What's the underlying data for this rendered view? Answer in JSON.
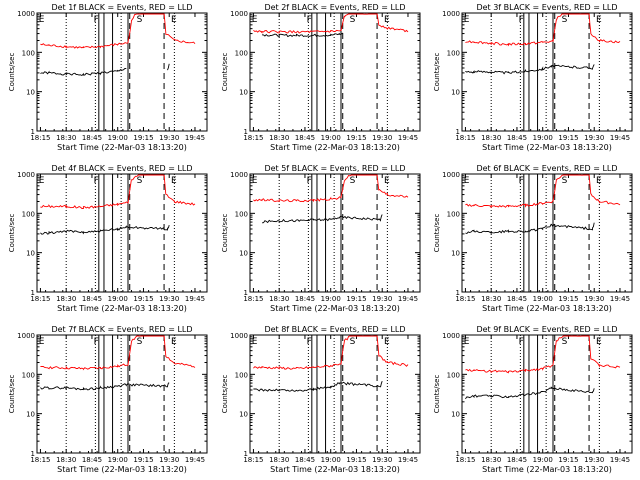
{
  "chart_data": [
    {
      "type": "line",
      "title": "Det 1f BLACK = Events, RED = LLD",
      "ylabel": "Counts/sec",
      "xlabel": "Start Time (22-Mar-03 18:13:20)",
      "x_ticks": [
        "18:15",
        "18:30",
        "18:45",
        "19:00",
        "19:15",
        "19:30",
        "19:45"
      ],
      "y_ticks": [
        "1",
        "10",
        "100",
        "1000"
      ],
      "ylim": [
        1,
        1000
      ],
      "yscale": "log",
      "markers": [
        "E",
        "F",
        "S",
        "E"
      ],
      "series": [
        {
          "name": "Events",
          "color": "#000000",
          "x": [
            "18:15",
            "18:20",
            "18:30",
            "18:40",
            "18:50",
            "19:00",
            "19:05",
            "19:28",
            "19:29",
            "19:30"
          ],
          "values": [
            30,
            30,
            28,
            27,
            30,
            33,
            40,
            null,
            35,
            50
          ]
        },
        {
          "name": "LLD",
          "color": "#ff0000",
          "x": [
            "18:15",
            "18:20",
            "18:30",
            "18:40",
            "18:50",
            "19:00",
            "19:06",
            "19:08",
            "19:10",
            "19:12",
            "19:27",
            "19:28",
            "19:33",
            "19:45"
          ],
          "values": [
            160,
            150,
            140,
            130,
            140,
            160,
            175,
            600,
            900,
            1000,
            1000,
            300,
            200,
            170
          ]
        }
      ]
    },
    {
      "type": "line",
      "title": "Det 2f BLACK = Events, RED = LLD",
      "ylabel": "Counts/sec",
      "xlabel": "Start Time (22-Mar-03 18:13:20)",
      "x_ticks": [
        "18:15",
        "18:30",
        "18:45",
        "19:00",
        "19:15",
        "19:30",
        "19:45"
      ],
      "y_ticks": [
        "1",
        "10",
        "100",
        "1000"
      ],
      "ylim": [
        1,
        1000
      ],
      "yscale": "log",
      "markers": [
        "E",
        "F",
        "S",
        "E"
      ],
      "series": [
        {
          "name": "Events",
          "color": "#000000",
          "x": [
            "18:20",
            "18:30",
            "18:40",
            "18:50",
            "19:00",
            "19:05",
            "19:07"
          ],
          "values": [
            280,
            270,
            270,
            270,
            275,
            290,
            300
          ]
        },
        {
          "name": "LLD",
          "color": "#ff0000",
          "x": [
            "18:15",
            "18:20",
            "18:30",
            "18:40",
            "18:50",
            "19:00",
            "19:06",
            "19:08",
            "19:12",
            "19:27",
            "19:28",
            "19:33",
            "19:45"
          ],
          "values": [
            350,
            340,
            330,
            330,
            330,
            340,
            350,
            800,
            1000,
            1000,
            500,
            420,
            350
          ]
        }
      ]
    },
    {
      "type": "line",
      "title": "Det 3f BLACK = Events, RED = LLD",
      "ylabel": "Counts/sec",
      "xlabel": "Start Time (22-Mar-03 18:13:20)",
      "x_ticks": [
        "18:15",
        "18:30",
        "18:45",
        "19:00",
        "19:15",
        "19:30",
        "19:45"
      ],
      "y_ticks": [
        "1",
        "10",
        "100",
        "1000"
      ],
      "ylim": [
        1,
        1000
      ],
      "yscale": "log",
      "markers": [
        "E",
        "F",
        "S",
        "E"
      ],
      "series": [
        {
          "name": "Events",
          "color": "#000000",
          "x": [
            "18:15",
            "18:20",
            "18:30",
            "18:40",
            "18:50",
            "19:00",
            "19:05",
            "19:29",
            "19:30"
          ],
          "values": [
            32,
            32,
            32,
            30,
            33,
            38,
            45,
            40,
            50
          ]
        },
        {
          "name": "LLD",
          "color": "#ff0000",
          "x": [
            "18:15",
            "18:20",
            "18:30",
            "18:40",
            "18:50",
            "19:00",
            "19:06",
            "19:08",
            "19:12",
            "19:27",
            "19:28",
            "19:33",
            "19:45"
          ],
          "values": [
            190,
            185,
            170,
            160,
            165,
            180,
            190,
            700,
            1000,
            1000,
            300,
            200,
            180
          ]
        }
      ]
    },
    {
      "type": "line",
      "title": "Det 4f BLACK = Events, RED = LLD",
      "ylabel": "Counts/sec",
      "xlabel": "Start Time (22-Mar-03 18:13:20)",
      "x_ticks": [
        "18:15",
        "18:30",
        "18:45",
        "19:00",
        "19:15",
        "19:30",
        "19:45"
      ],
      "y_ticks": [
        "1",
        "10",
        "100",
        "1000"
      ],
      "ylim": [
        1,
        1000
      ],
      "yscale": "log",
      "markers": [
        "E",
        "F",
        "S",
        "E"
      ],
      "series": [
        {
          "name": "Events",
          "color": "#000000",
          "x": [
            "18:15",
            "18:20",
            "18:30",
            "18:40",
            "18:50",
            "19:00",
            "19:05",
            "19:29",
            "19:30"
          ],
          "values": [
            30,
            32,
            35,
            33,
            35,
            40,
            45,
            40,
            50
          ]
        },
        {
          "name": "LLD",
          "color": "#ff0000",
          "x": [
            "18:15",
            "18:20",
            "18:30",
            "18:40",
            "18:50",
            "19:00",
            "19:06",
            "19:08",
            "19:12",
            "19:27",
            "19:28",
            "19:33",
            "19:45"
          ],
          "values": [
            150,
            150,
            150,
            140,
            150,
            170,
            190,
            700,
            1000,
            1000,
            300,
            200,
            170
          ]
        }
      ]
    },
    {
      "type": "line",
      "title": "Det 5f BLACK = Events, RED = LLD",
      "ylabel": "Counts/sec",
      "xlabel": "Start Time (22-Mar-03 18:13:20)",
      "x_ticks": [
        "18:15",
        "18:30",
        "18:45",
        "19:00",
        "19:15",
        "19:30",
        "19:45"
      ],
      "y_ticks": [
        "1",
        "10",
        "100",
        "1000"
      ],
      "ylim": [
        1,
        1000
      ],
      "yscale": "log",
      "markers": [
        "E",
        "F",
        "S",
        "E"
      ],
      "series": [
        {
          "name": "Events",
          "color": "#000000",
          "x": [
            "18:20",
            "18:30",
            "18:40",
            "18:50",
            "19:00",
            "19:05",
            "19:29",
            "19:30"
          ],
          "values": [
            60,
            65,
            65,
            68,
            70,
            80,
            70,
            90
          ]
        },
        {
          "name": "LLD",
          "color": "#ff0000",
          "x": [
            "18:15",
            "18:20",
            "18:30",
            "18:40",
            "18:50",
            "19:00",
            "19:06",
            "19:08",
            "19:12",
            "19:27",
            "19:28",
            "19:33",
            "19:45"
          ],
          "values": [
            220,
            220,
            210,
            210,
            215,
            230,
            250,
            700,
            1000,
            1000,
            400,
            300,
            260
          ]
        }
      ]
    },
    {
      "type": "line",
      "title": "Det 6f BLACK = Events, RED = LLD",
      "ylabel": "Counts/sec",
      "xlabel": "Start Time (22-Mar-03 18:13:20)",
      "x_ticks": [
        "18:15",
        "18:30",
        "18:45",
        "19:00",
        "19:15",
        "19:30",
        "19:45"
      ],
      "y_ticks": [
        "1",
        "10",
        "100",
        "1000"
      ],
      "ylim": [
        1,
        1000
      ],
      "yscale": "log",
      "markers": [
        "E",
        "F",
        "S",
        "E"
      ],
      "series": [
        {
          "name": "Events",
          "color": "#000000",
          "x": [
            "18:15",
            "18:20",
            "18:30",
            "18:40",
            "18:50",
            "19:00",
            "19:05",
            "19:29",
            "19:30"
          ],
          "values": [
            32,
            35,
            33,
            35,
            35,
            40,
            50,
            40,
            55
          ]
        },
        {
          "name": "LLD",
          "color": "#ff0000",
          "x": [
            "18:15",
            "18:20",
            "18:30",
            "18:40",
            "18:50",
            "19:00",
            "19:06",
            "19:08",
            "19:12",
            "19:27",
            "19:28",
            "19:33",
            "19:45"
          ],
          "values": [
            160,
            160,
            150,
            150,
            160,
            180,
            200,
            700,
            1000,
            1000,
            300,
            200,
            170
          ]
        }
      ]
    },
    {
      "type": "line",
      "title": "Det 7f BLACK = Events, RED = LLD",
      "ylabel": "Counts/sec",
      "xlabel": "Start Time (22-Mar-03 18:13:20)",
      "x_ticks": [
        "18:15",
        "18:30",
        "18:45",
        "19:00",
        "19:15",
        "19:30",
        "19:45"
      ],
      "y_ticks": [
        "1",
        "10",
        "100",
        "1000"
      ],
      "ylim": [
        1,
        1000
      ],
      "yscale": "log",
      "markers": [
        "E",
        "F",
        "S",
        "E"
      ],
      "series": [
        {
          "name": "Events",
          "color": "#000000",
          "x": [
            "18:15",
            "18:20",
            "18:30",
            "18:40",
            "18:50",
            "19:00",
            "19:05",
            "19:29",
            "19:30"
          ],
          "values": [
            45,
            45,
            45,
            42,
            45,
            50,
            55,
            50,
            65
          ]
        },
        {
          "name": "LLD",
          "color": "#ff0000",
          "x": [
            "18:15",
            "18:20",
            "18:30",
            "18:40",
            "18:50",
            "19:00",
            "19:06",
            "19:08",
            "19:12",
            "19:27",
            "19:28",
            "19:33",
            "19:45"
          ],
          "values": [
            150,
            150,
            145,
            140,
            145,
            160,
            180,
            700,
            1000,
            1000,
            300,
            190,
            160
          ]
        }
      ]
    },
    {
      "type": "line",
      "title": "Det 8f BLACK = Events, RED = LLD",
      "ylabel": "Counts/sec",
      "xlabel": "Start Time (22-Mar-03 18:13:20)",
      "x_ticks": [
        "18:15",
        "18:30",
        "18:45",
        "19:00",
        "19:15",
        "19:30",
        "19:45"
      ],
      "y_ticks": [
        "1",
        "10",
        "100",
        "1000"
      ],
      "ylim": [
        1,
        1000
      ],
      "yscale": "log",
      "markers": [
        "E",
        "F",
        "S",
        "E"
      ],
      "series": [
        {
          "name": "Events",
          "color": "#000000",
          "x": [
            "18:15",
            "18:20",
            "18:30",
            "18:40",
            "18:50",
            "19:00",
            "19:05",
            "19:29",
            "19:30"
          ],
          "values": [
            40,
            40,
            40,
            38,
            42,
            48,
            60,
            50,
            70
          ]
        },
        {
          "name": "LLD",
          "color": "#ff0000",
          "x": [
            "18:15",
            "18:20",
            "18:30",
            "18:40",
            "18:50",
            "19:00",
            "19:06",
            "19:08",
            "19:12",
            "19:27",
            "19:28",
            "19:33",
            "19:45"
          ],
          "values": [
            150,
            150,
            145,
            140,
            150,
            165,
            190,
            700,
            1000,
            1000,
            300,
            200,
            170
          ]
        }
      ]
    },
    {
      "type": "line",
      "title": "Det 9f BLACK = Events, RED = LLD",
      "ylabel": "Counts/sec",
      "xlabel": "Start Time (22-Mar-03 18:13:20)",
      "x_ticks": [
        "18:15",
        "18:30",
        "18:45",
        "19:00",
        "19:15",
        "19:30",
        "19:45"
      ],
      "y_ticks": [
        "1",
        "10",
        "100",
        "1000"
      ],
      "ylim": [
        1,
        1000
      ],
      "yscale": "log",
      "markers": [
        "E",
        "F",
        "S",
        "E"
      ],
      "series": [
        {
          "name": "Events",
          "color": "#000000",
          "x": [
            "18:15",
            "18:20",
            "18:30",
            "18:40",
            "18:50",
            "19:00",
            "19:05",
            "19:29",
            "19:30"
          ],
          "values": [
            25,
            28,
            28,
            27,
            30,
            35,
            45,
            35,
            45
          ]
        },
        {
          "name": "LLD",
          "color": "#ff0000",
          "x": [
            "18:15",
            "18:20",
            "18:30",
            "18:40",
            "18:50",
            "19:00",
            "19:06",
            "19:08",
            "19:12",
            "19:27",
            "19:28",
            "19:33",
            "19:45"
          ],
          "values": [
            130,
            125,
            120,
            115,
            125,
            140,
            170,
            700,
            1000,
            1000,
            250,
            170,
            150
          ]
        }
      ]
    }
  ]
}
